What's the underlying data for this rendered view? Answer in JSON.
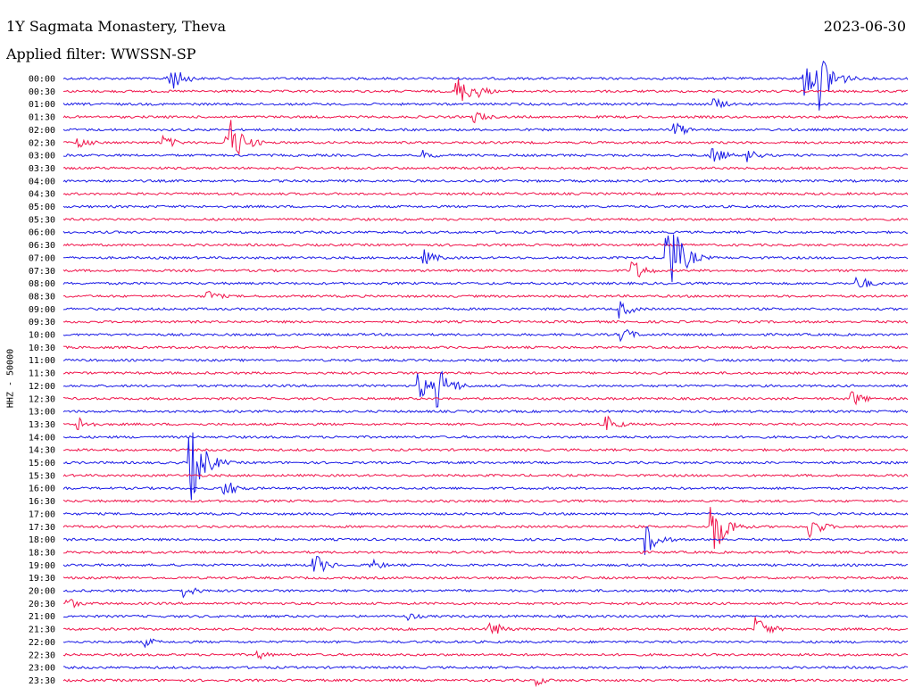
{
  "header": {
    "station": "1Y Sagmata Monastery, Theva",
    "date": "2023-06-30",
    "filter": "Applied filter: WWSSN-SP",
    "channel": "HHZ - 50000"
  },
  "colors": {
    "even": "#1a1ae6",
    "odd": "#f0144b"
  },
  "chart_data": {
    "type": "line",
    "title": "1Y Sagmata Monastery, Theva",
    "ylabel": "HHZ - 50000",
    "xlabel": "",
    "rows": [
      "00:00",
      "00:30",
      "01:00",
      "01:30",
      "02:00",
      "02:30",
      "03:00",
      "03:30",
      "04:00",
      "04:30",
      "05:00",
      "05:30",
      "06:00",
      "06:30",
      "07:00",
      "07:30",
      "08:00",
      "08:30",
      "09:00",
      "09:30",
      "10:00",
      "10:30",
      "11:00",
      "11:30",
      "12:00",
      "12:30",
      "13:00",
      "13:30",
      "14:00",
      "14:30",
      "15:00",
      "15:30",
      "16:00",
      "16:30",
      "17:00",
      "17:30",
      "18:00",
      "18:30",
      "19:00",
      "19:30",
      "20:00",
      "20:30",
      "21:00",
      "21:30",
      "22:00",
      "22:30",
      "23:00",
      "23:30"
    ],
    "minutes_per_row": 30,
    "events": [
      {
        "row": 0,
        "minute": 3.7,
        "amp": 20
      },
      {
        "row": 0,
        "minute": 26.3,
        "amp": 26
      },
      {
        "row": 0,
        "minute": 26.9,
        "amp": 36
      },
      {
        "row": 1,
        "minute": 13.9,
        "amp": 22
      },
      {
        "row": 1,
        "minute": 14.6,
        "amp": 10
      },
      {
        "row": 2,
        "minute": 23.1,
        "amp": 8
      },
      {
        "row": 3,
        "minute": 14.6,
        "amp": 8
      },
      {
        "row": 4,
        "minute": 21.7,
        "amp": 10
      },
      {
        "row": 5,
        "minute": 0.5,
        "amp": 8
      },
      {
        "row": 5,
        "minute": 3.5,
        "amp": 10
      },
      {
        "row": 5,
        "minute": 5.8,
        "amp": 38
      },
      {
        "row": 6,
        "minute": 12.8,
        "amp": 6
      },
      {
        "row": 6,
        "minute": 23.0,
        "amp": 12
      },
      {
        "row": 6,
        "minute": 24.3,
        "amp": 8
      },
      {
        "row": 14,
        "minute": 21.4,
        "amp": 60
      },
      {
        "row": 14,
        "minute": 12.8,
        "amp": 10
      },
      {
        "row": 15,
        "minute": 20.2,
        "amp": 14
      },
      {
        "row": 16,
        "minute": 28.2,
        "amp": 10
      },
      {
        "row": 17,
        "minute": 5.1,
        "amp": 8
      },
      {
        "row": 18,
        "minute": 19.7,
        "amp": 12
      },
      {
        "row": 20,
        "minute": 19.8,
        "amp": 10
      },
      {
        "row": 24,
        "minute": 12.6,
        "amp": 18
      },
      {
        "row": 24,
        "minute": 13.3,
        "amp": 24
      },
      {
        "row": 25,
        "minute": 28.0,
        "amp": 10
      },
      {
        "row": 27,
        "minute": 0.5,
        "amp": 10
      },
      {
        "row": 27,
        "minute": 19.3,
        "amp": 10
      },
      {
        "row": 30,
        "minute": 4.5,
        "amp": 48
      },
      {
        "row": 32,
        "minute": 5.7,
        "amp": 12
      },
      {
        "row": 35,
        "minute": 23.0,
        "amp": 40
      },
      {
        "row": 35,
        "minute": 26.5,
        "amp": 14
      },
      {
        "row": 36,
        "minute": 20.7,
        "amp": 18
      },
      {
        "row": 38,
        "minute": 8.9,
        "amp": 14
      },
      {
        "row": 38,
        "minute": 10.9,
        "amp": 8
      },
      {
        "row": 40,
        "minute": 4.3,
        "amp": 8
      },
      {
        "row": 41,
        "minute": 0.1,
        "amp": 8
      },
      {
        "row": 42,
        "minute": 12.2,
        "amp": 6
      },
      {
        "row": 43,
        "minute": 15.1,
        "amp": 12
      },
      {
        "row": 43,
        "minute": 24.6,
        "amp": 16
      },
      {
        "row": 44,
        "minute": 2.9,
        "amp": 6
      },
      {
        "row": 45,
        "minute": 6.9,
        "amp": 6
      },
      {
        "row": 47,
        "minute": 16.8,
        "amp": 6
      }
    ]
  }
}
